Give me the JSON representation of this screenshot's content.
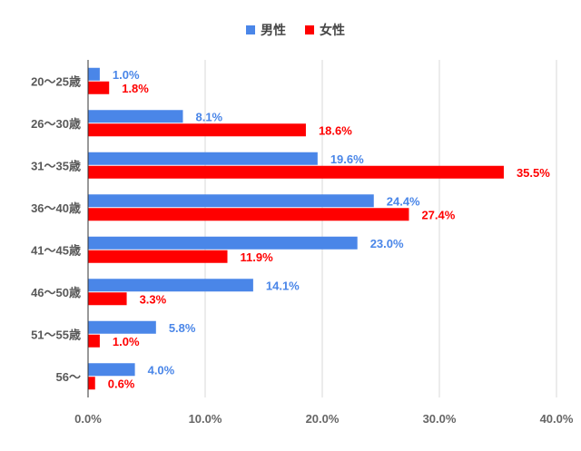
{
  "chart_data": {
    "type": "bar",
    "orientation": "horizontal",
    "categories": [
      "20〜25歳",
      "26〜30歳",
      "31〜35歳",
      "36〜40歳",
      "41〜45歳",
      "46〜50歳",
      "51〜55歳",
      "56〜"
    ],
    "series": [
      {
        "name": "男性",
        "color": "#4a86e8",
        "values": [
          1.0,
          8.1,
          19.6,
          24.4,
          23.0,
          14.1,
          5.8,
          4.0
        ],
        "labels": [
          "1.0%",
          "8.1%",
          "19.6%",
          "24.4%",
          "23.0%",
          "14.1%",
          "5.8%",
          "4.0%"
        ]
      },
      {
        "name": "女性",
        "color": "#ff0000",
        "values": [
          1.8,
          18.6,
          35.5,
          27.4,
          11.9,
          3.3,
          1.0,
          0.6
        ],
        "labels": [
          "1.8%",
          "18.6%",
          "35.5%",
          "27.4%",
          "11.9%",
          "3.3%",
          "1.0%",
          "0.6%"
        ]
      }
    ],
    "xlim": [
      0,
      40
    ],
    "x_ticks": [
      0,
      10,
      20,
      30,
      40
    ],
    "x_tick_labels": [
      "0.0%",
      "10.0%",
      "20.0%",
      "30.0%",
      "40.0%"
    ],
    "title": "",
    "xlabel": "",
    "ylabel": "",
    "grid": true,
    "legend_position": "top-center"
  }
}
